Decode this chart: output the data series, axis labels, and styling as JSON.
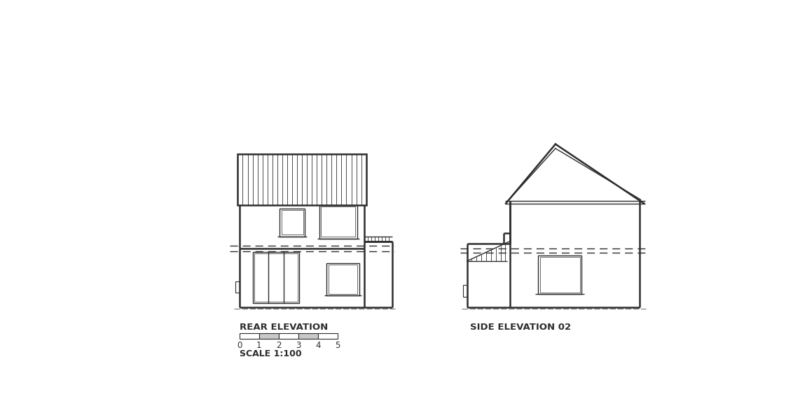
{
  "bg_color": "#ffffff",
  "lc": "#2d2d2d",
  "lw": 1.0,
  "tlw": 1.8,
  "rear_label": "REAR ELEVATION",
  "side_label": "SIDE ELEVATION 02",
  "scale_label": "SCALE 1:100",
  "scale_ticks": [
    0,
    1,
    2,
    3,
    4,
    5
  ]
}
